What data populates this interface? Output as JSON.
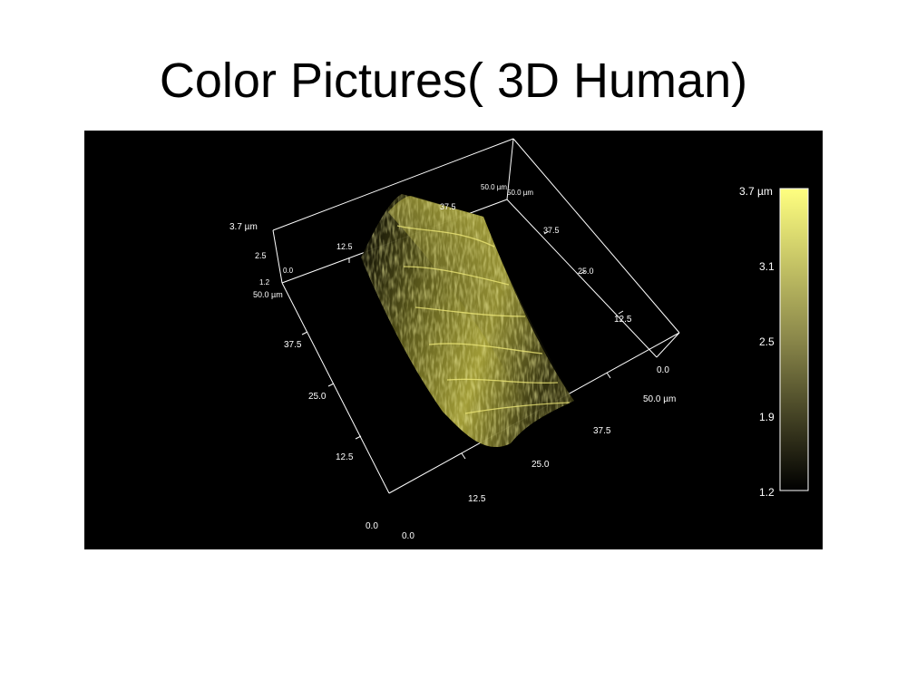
{
  "title": "Color Pictures( 3D Human)",
  "colors": {
    "background": "#000000",
    "surface_high": "#ffff80",
    "surface_low": "#000000",
    "axis_lines": "#ffffff"
  },
  "axes": {
    "z_labels": [
      "3.7 µm",
      "2.5",
      "1.2",
      "0.0"
    ],
    "left_edge_labels": [
      "50.0 µm",
      "37.5",
      "25.0",
      "12.5",
      "0.0"
    ],
    "bottom_edge_labels": [
      "0.0",
      "12.5",
      "25.0",
      "37.5",
      "50.0 µm"
    ],
    "right_edge_labels": [
      "0.0",
      "12.5",
      "25.0",
      "37.5",
      "50.0 µm"
    ],
    "top_back_labels": [
      "12.5",
      "37.5",
      "50.0 µm"
    ],
    "top_back_small": [
      "50.0 µm",
      "37.5"
    ]
  },
  "colorbar": {
    "top_label": "3.7 µm",
    "tick_labels": [
      "3.1",
      "2.5",
      "1.9",
      "1.2"
    ],
    "range": [
      1.2,
      3.7
    ]
  }
}
